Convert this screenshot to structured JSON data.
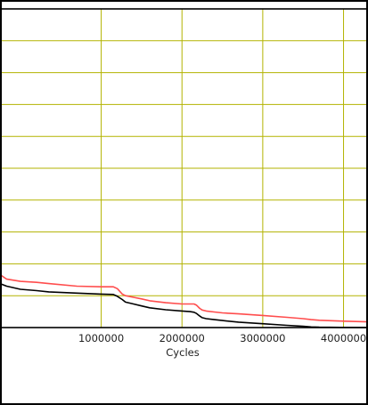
{
  "chart_data": {
    "type": "line",
    "title": "",
    "xlabel": "Cycles",
    "ylabel": "",
    "x_tick_labels": [
      "1000000",
      "2000000",
      "3000000",
      "4000000"
    ],
    "x_ticks": [
      1000000,
      2000000,
      3000000,
      4000000
    ],
    "xlim": [
      -275000,
      4325000
    ],
    "ylim": [
      0,
      10
    ],
    "y_gridlines": [
      1,
      2,
      3,
      4,
      5,
      6,
      7,
      8,
      9
    ],
    "grid": true,
    "grid_color": "#b3b300",
    "series": [
      {
        "color": "#ff4d4d",
        "x": [
          -275000,
          -170000,
          0,
          200000,
          350000,
          700000,
          1000000,
          1150000,
          1200000,
          1260000,
          1300000,
          1400000,
          1500000,
          1600000,
          1800000,
          2000000,
          2100000,
          2150000,
          2180000,
          2220000,
          2250000,
          2300000,
          2400000,
          2500000,
          2700000,
          3000000,
          3300000,
          3500000,
          3600000,
          3700000,
          4000000,
          4325000
        ],
        "values": [
          1.7,
          1.52,
          1.45,
          1.42,
          1.38,
          1.3,
          1.28,
          1.28,
          1.22,
          1.05,
          1.0,
          0.95,
          0.9,
          0.84,
          0.78,
          0.74,
          0.74,
          0.74,
          0.7,
          0.6,
          0.55,
          0.52,
          0.49,
          0.46,
          0.43,
          0.38,
          0.32,
          0.28,
          0.25,
          0.23,
          0.2,
          0.18
        ]
      },
      {
        "color": "#000000",
        "x": [
          -275000,
          -170000,
          0,
          200000,
          350000,
          700000,
          1000000,
          1150000,
          1200000,
          1260000,
          1300000,
          1400000,
          1500000,
          1600000,
          1800000,
          2000000,
          2100000,
          2150000,
          2180000,
          2220000,
          2250000,
          2300000,
          2400000,
          2500000,
          2700000,
          3000000,
          3300000,
          3500000,
          3600000,
          3700000,
          4000000,
          4325000
        ],
        "values": [
          1.4,
          1.3,
          1.2,
          1.16,
          1.12,
          1.08,
          1.05,
          1.04,
          0.98,
          0.88,
          0.8,
          0.74,
          0.68,
          0.62,
          0.56,
          0.52,
          0.5,
          0.48,
          0.44,
          0.36,
          0.31,
          0.28,
          0.25,
          0.22,
          0.17,
          0.12,
          0.07,
          0.04,
          0.02,
          0.01,
          0.005,
          0.0
        ]
      }
    ],
    "frame_color": "#000000",
    "background": "#ffffff"
  }
}
